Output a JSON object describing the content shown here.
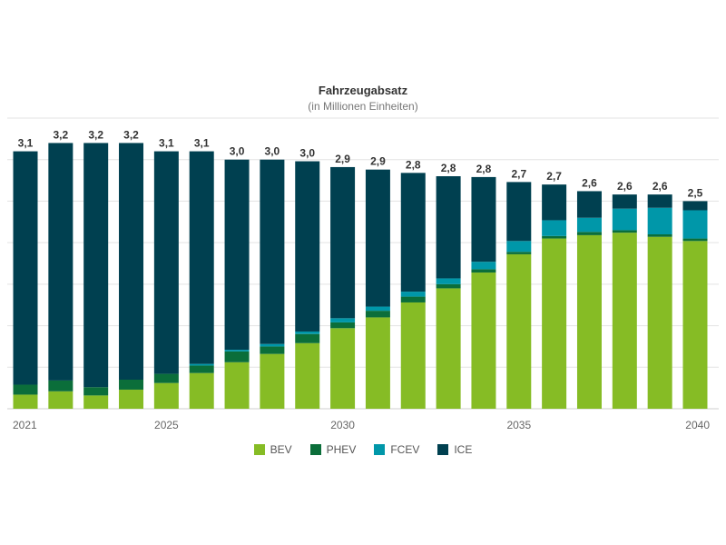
{
  "chart_data": {
    "type": "bar",
    "stacked": true,
    "title": "Fahrzeugabsatz",
    "subtitle": "(in Millionen Einheiten)",
    "x": [
      2021,
      2022,
      2023,
      2024,
      2025,
      2026,
      2027,
      2028,
      2029,
      2030,
      2031,
      2032,
      2033,
      2034,
      2035,
      2036,
      2037,
      2038,
      2039,
      2040
    ],
    "x_tick_labels": [
      "2021",
      "2025",
      "2030",
      "2035",
      "2040"
    ],
    "totals_labels": [
      "3,1",
      "3,2",
      "3,2",
      "3,2",
      "3,1",
      "3,1",
      "3,0",
      "3,0",
      "3,0",
      "2,9",
      "2,9",
      "2,8",
      "2,8",
      "2,8",
      "2,7",
      "2,7",
      "2,6",
      "2,6",
      "2,6",
      "2,5"
    ],
    "ylim": [
      0,
      3.5
    ],
    "grid": true,
    "legend_position": "bottom",
    "series": [
      {
        "name": "BEV",
        "color": "#86bc25",
        "values": [
          0.17,
          0.21,
          0.16,
          0.23,
          0.31,
          0.43,
          0.56,
          0.66,
          0.79,
          0.97,
          1.1,
          1.28,
          1.45,
          1.64,
          1.86,
          2.05,
          2.09,
          2.12,
          2.07,
          2.02
        ]
      },
      {
        "name": "PHEV",
        "color": "#0b6e3a",
        "values": [
          0.12,
          0.13,
          0.1,
          0.12,
          0.11,
          0.09,
          0.13,
          0.09,
          0.11,
          0.07,
          0.08,
          0.07,
          0.05,
          0.04,
          0.03,
          0.03,
          0.04,
          0.03,
          0.03,
          0.03
        ]
      },
      {
        "name": "FCEV",
        "color": "#0097a9",
        "values": [
          0.0,
          0.0,
          0.0,
          0.0,
          0.0,
          0.02,
          0.02,
          0.03,
          0.03,
          0.05,
          0.05,
          0.06,
          0.07,
          0.09,
          0.13,
          0.19,
          0.17,
          0.26,
          0.32,
          0.34
        ]
      },
      {
        "name": "ICE",
        "color": "#004050",
        "values": [
          2.81,
          2.86,
          2.94,
          2.85,
          2.68,
          2.56,
          2.29,
          2.22,
          2.05,
          1.82,
          1.65,
          1.43,
          1.23,
          1.02,
          0.71,
          0.43,
          0.32,
          0.17,
          0.16,
          0.11
        ]
      }
    ]
  }
}
